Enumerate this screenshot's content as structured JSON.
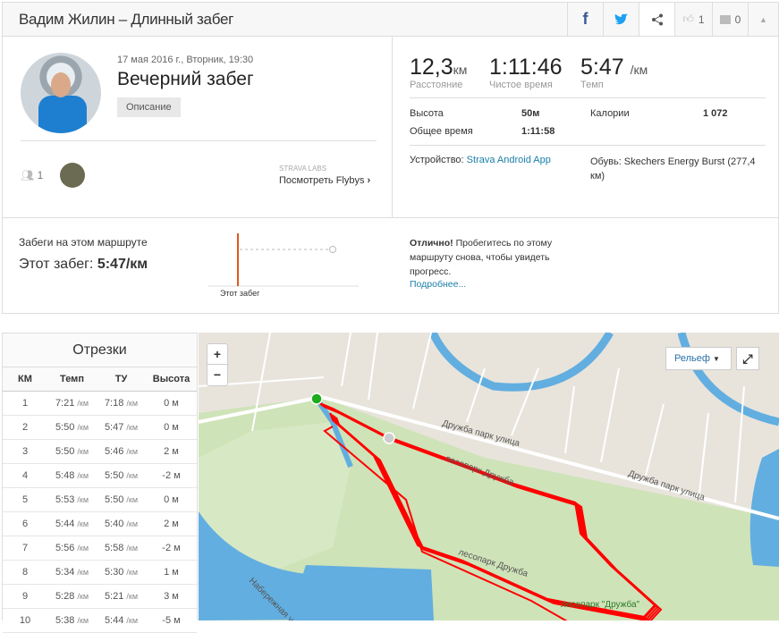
{
  "header": {
    "title": "Вадим Жилин – Длинный забег",
    "likes": "1",
    "comments": "0"
  },
  "activity": {
    "date": "17 мая 2016 г., Вторник, 19:30",
    "name": "Вечерний забег",
    "description_button": "Описание",
    "followers": "1",
    "flybys_label": "STRAVA LABS",
    "flybys_link": "Посмотреть Flybys"
  },
  "stats": {
    "distance": "12,3",
    "distance_unit": "км",
    "distance_label": "Расстояние",
    "moving_time": "1:11:46",
    "moving_time_label": "Чистое время",
    "pace": "5:47",
    "pace_unit": "/км",
    "pace_label": "Темп",
    "elevation_label": "Высота",
    "elevation": "50м",
    "calories_label": "Калории",
    "calories": "1 072",
    "elapsed_label": "Общее время",
    "elapsed": "1:11:58",
    "device_label": "Устройство:",
    "device": "Strava Android App",
    "shoes": "Обувь: Skechers Energy Burst (277,4 км)"
  },
  "segment": {
    "title": "Забеги на этом маршруте",
    "this_run_label": "Этот забег:",
    "this_run_value": "5:47/км",
    "chart_label": "Этот забег",
    "note_bold": "Отлично!",
    "note": " Пробегитесь по этому маршруту снова, чтобы увидеть прогресс.",
    "more": "Подробнее..."
  },
  "splits": {
    "title": "Отрезки",
    "columns": [
      "КМ",
      "Темп",
      "ТУ",
      "Высота"
    ],
    "unit": "/км",
    "rows": [
      [
        "1",
        "7:21",
        "7:18",
        "0 м"
      ],
      [
        "2",
        "5:50",
        "5:47",
        "0 м"
      ],
      [
        "3",
        "5:50",
        "5:46",
        "2 м"
      ],
      [
        "4",
        "5:48",
        "5:50",
        "-2 м"
      ],
      [
        "5",
        "5:53",
        "5:50",
        "0 м"
      ],
      [
        "6",
        "5:44",
        "5:40",
        "2 м"
      ],
      [
        "7",
        "5:56",
        "5:58",
        "-2 м"
      ],
      [
        "8",
        "5:34",
        "5:30",
        "1 м"
      ],
      [
        "9",
        "5:28",
        "5:21",
        "3 м"
      ],
      [
        "10",
        "5:38",
        "5:44",
        "-5 м"
      ]
    ]
  },
  "map": {
    "zoom_in": "+",
    "zoom_out": "−",
    "layer": "Рельеф",
    "labels": [
      "Дружба парк улица",
      "Дружба парк улица",
      "лесопарк Дружба",
      "лесопарк Дружба",
      "лесопарк \"Дружба\"",
      "Набережная улица"
    ],
    "route_color": "#ff0000"
  }
}
